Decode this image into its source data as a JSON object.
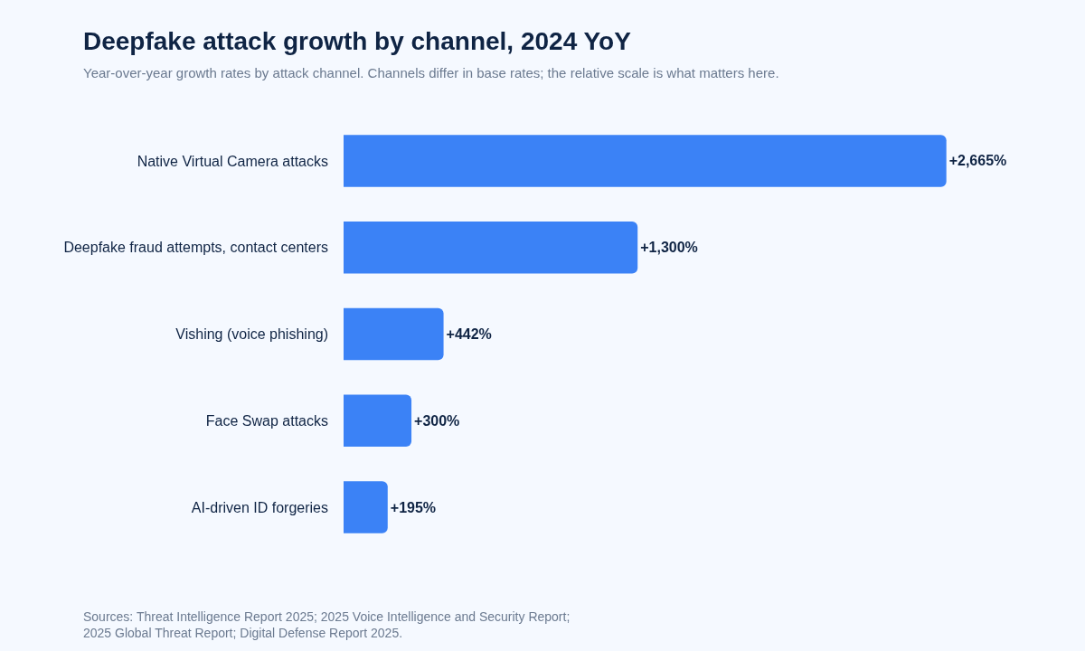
{
  "chart_data": {
    "type": "bar",
    "orientation": "horizontal",
    "title": "Deepfake attack growth by channel, 2024 YoY",
    "subtitle": "Year-over-year growth rates by attack channel. Channels differ in base rates; the relative scale is what matters here.",
    "categories": [
      "Native Virtual Camera attacks",
      "Deepfake fraud attempts, contact centers",
      "Vishing (voice phishing)",
      "Face Swap attacks",
      "AI-driven ID forgeries"
    ],
    "values": [
      2665,
      1300,
      442,
      300,
      195
    ],
    "value_labels": [
      "+2,665%",
      "+1,300%",
      "+442%",
      "+300%",
      "+195%"
    ],
    "color": "#3b82f6",
    "grid": false,
    "legend": false,
    "tick_labels": "y",
    "annotations": [
      "Sources: Threat Intelligence Report 2025; 2025 Voice Intelligence and Security Report;\n2025 Global Threat Report; Digital Defense Report 2025."
    ]
  }
}
